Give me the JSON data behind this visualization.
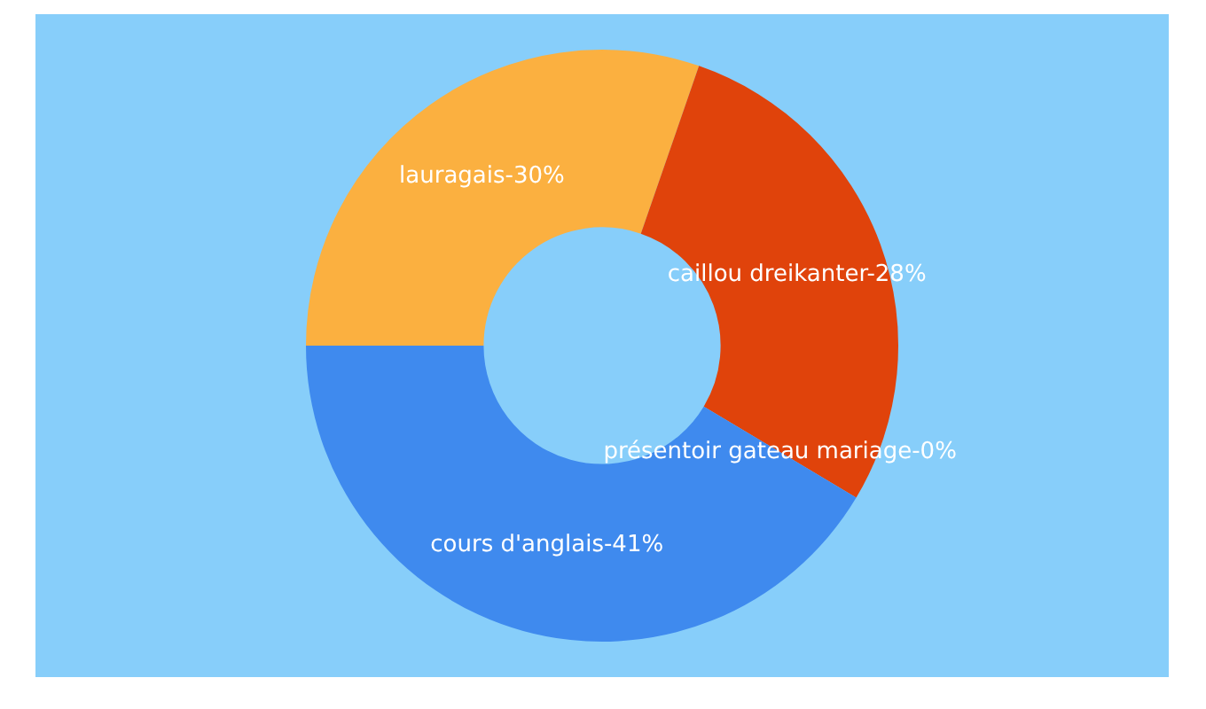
{
  "chart_data": {
    "type": "donut",
    "categories": [
      "lauragais-30%",
      "caillou dreikanter-28%",
      "présentoir gateau mariage-0%",
      "cours d'anglais-41%"
    ],
    "values": [
      30,
      28,
      0,
      41
    ],
    "colors": [
      "#fbb040",
      "#e0430b",
      "#a0a0a0",
      "#3f8aee"
    ]
  }
}
